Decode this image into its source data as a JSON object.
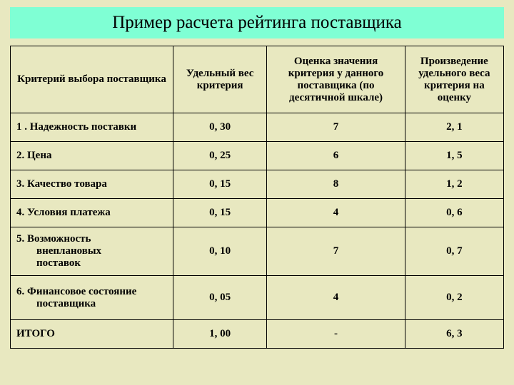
{
  "title": "Пример расчета рейтинга поставщика",
  "columns": [
    "Критерий выбора поставщика",
    "Удельный вес критерия",
    "Оценка значения критерия у данного поставщика (по десятичной шкале)",
    "Произведение удельного веса критерия на оценку"
  ],
  "rows": [
    {
      "criterion": "1 . Надежность поставки",
      "weight": "0, 30",
      "score": "7",
      "product": "2, 1"
    },
    {
      "criterion": "2. Цена",
      "weight": "0, 25",
      "score": "6",
      "product": "1, 5"
    },
    {
      "criterion": "3. Качество товара",
      "weight": "0, 15",
      "score": "8",
      "product": "1, 2"
    },
    {
      "criterion": "4. Условия платежа",
      "weight": "0, 15",
      "score": "4",
      "product": "0, 6"
    },
    {
      "criterion": "5. Возможность внеплановых поставок",
      "weight": "0, 10",
      "score": "7",
      "product": "0, 7",
      "multiline": [
        "5. Возможность",
        "внеплановых",
        "поставок"
      ]
    },
    {
      "criterion": "6. Финансовое состояние поставщика",
      "weight": "0, 05",
      "score": "4",
      "product": "0, 2",
      "multiline": [
        "6. Финансовое состояние",
        "поставщика"
      ]
    },
    {
      "criterion": "ИТОГО",
      "weight": "1, 00",
      "score": "-",
      "product": "6, 3"
    }
  ],
  "column_widths": [
    "33%",
    "19%",
    "28%",
    "20%"
  ],
  "colors": {
    "background": "#e8e8c0",
    "title_bg": "#7fffd4",
    "border": "#000000",
    "text": "#000000"
  }
}
